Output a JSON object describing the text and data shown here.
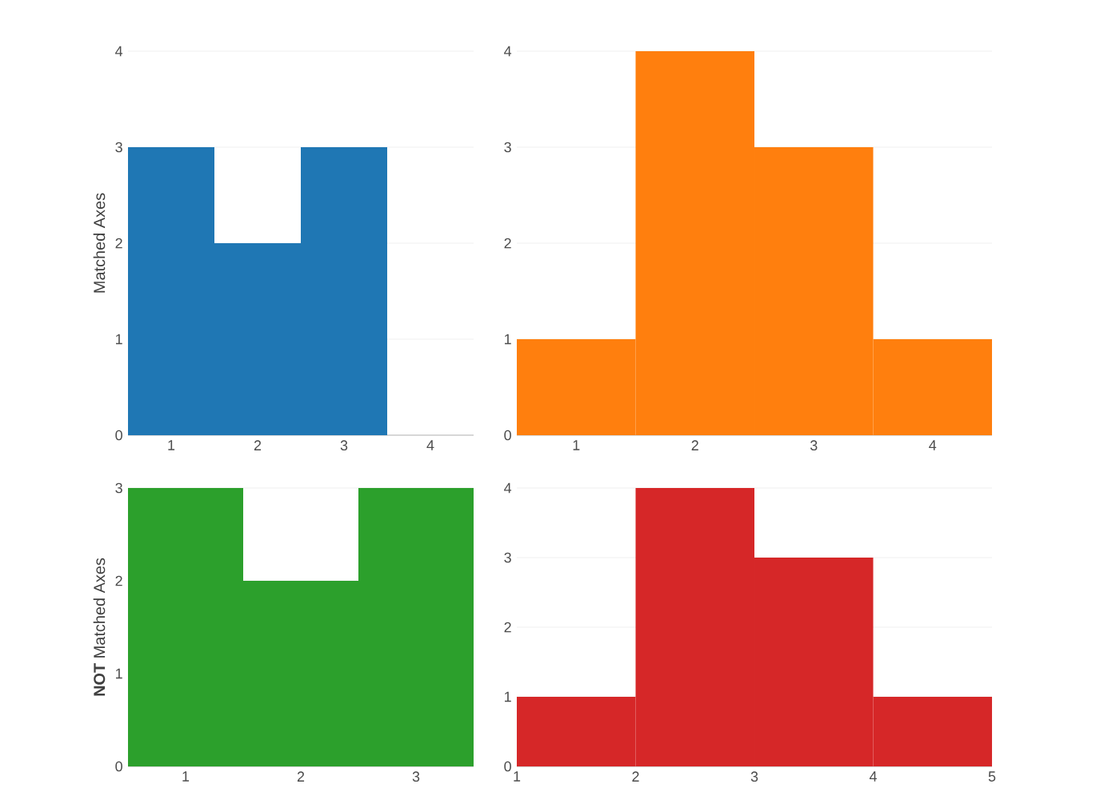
{
  "chart_data": [
    {
      "type": "histogram",
      "ylabel": "Matched Axes",
      "bins": [
        0.5,
        1.5,
        2.5,
        3.5
      ],
      "values": [
        3,
        2,
        3
      ],
      "color": "#1f77b4",
      "xlim": [
        0.5,
        4.5
      ],
      "xticks": [
        1,
        2,
        3,
        4
      ],
      "ylim": [
        0,
        4
      ],
      "yticks": [
        0,
        1,
        2,
        3,
        4
      ],
      "grid": "y"
    },
    {
      "type": "histogram",
      "bins": [
        0.5,
        1.5,
        2.5,
        3.5,
        4.5
      ],
      "values": [
        1,
        4,
        3,
        1
      ],
      "color": "#ff7f0e",
      "xlim": [
        0.5,
        4.5
      ],
      "xticks": [
        1,
        2,
        3,
        4
      ],
      "ylim": [
        0,
        4
      ],
      "yticks": [
        0,
        1,
        2,
        3,
        4
      ],
      "grid": "y"
    },
    {
      "type": "histogram",
      "ylabel": "**NOT** Matched Axes",
      "bins": [
        0.5,
        1.5,
        2.5,
        3.5
      ],
      "values": [
        3,
        2,
        3
      ],
      "color": "#2ca02c",
      "xlim": [
        0.5,
        3.5
      ],
      "xticks": [
        1,
        2,
        3
      ],
      "ylim": [
        0,
        3
      ],
      "yticks": [
        0,
        1,
        2,
        3
      ],
      "grid": "y"
    },
    {
      "type": "histogram",
      "bins": [
        1,
        2,
        3,
        4,
        5
      ],
      "values": [
        1,
        4,
        3,
        1
      ],
      "color": "#d62728",
      "xlim": [
        1,
        5
      ],
      "xticks": [
        1,
        2,
        3,
        4,
        5
      ],
      "ylim": [
        0,
        4
      ],
      "yticks": [
        0,
        1,
        2,
        3,
        4
      ],
      "grid": "y"
    }
  ]
}
